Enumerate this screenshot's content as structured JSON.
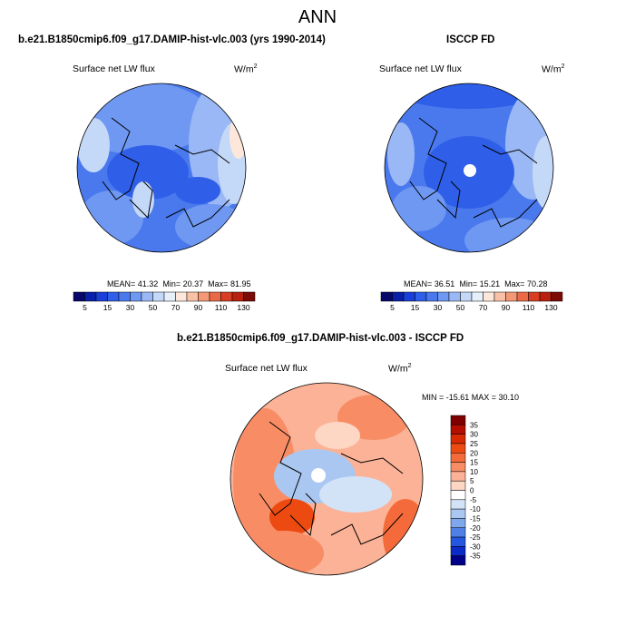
{
  "figure": {
    "title": "ANN"
  },
  "colors": {
    "ocean_default": "#d6e6f7",
    "coastline": "#000000"
  },
  "chart_data": [
    {
      "type": "heatmap",
      "projection": "polar-stereographic-north",
      "title": "b.e21.B1850cmip6.f09_g17.DAMIP-hist-vlc.003 (yrs 1990-2014)",
      "variable": "Surface net LW flux",
      "units": "W/m",
      "units_exp": "2",
      "stats": {
        "mean_label": "MEAN=",
        "mean": "41.32",
        "min_label": "Min=",
        "min": "20.37",
        "max_label": "Max=",
        "max": "81.95"
      },
      "colorbar": {
        "orientation": "horizontal",
        "levels": [
          5,
          10,
          15,
          20,
          30,
          40,
          50,
          60,
          70,
          80,
          90,
          100,
          110,
          120,
          130
        ],
        "tick_labels": [
          "5",
          "15",
          "30",
          "50",
          "70",
          "90",
          "110",
          "130"
        ],
        "colors": [
          "#08086b",
          "#0a1fa8",
          "#1a3fd9",
          "#2f5fe8",
          "#4a79ee",
          "#6f98f2",
          "#9ab8f5",
          "#c4d8f8",
          "#e6f0fb",
          "#fde7da",
          "#f9c2a6",
          "#f49876",
          "#ea6a48",
          "#d83e22",
          "#b8210f",
          "#7c0a05"
        ]
      }
    },
    {
      "type": "heatmap",
      "projection": "polar-stereographic-north",
      "title": "ISCCP FD",
      "variable": "Surface net LW flux",
      "units": "W/m",
      "units_exp": "2",
      "stats": {
        "mean_label": "MEAN=",
        "mean": "36.51",
        "min_label": "Min=",
        "min": "15.21",
        "max_label": "Max=",
        "max": "70.28"
      },
      "colorbar": {
        "orientation": "horizontal",
        "levels": [
          5,
          10,
          15,
          20,
          30,
          40,
          50,
          60,
          70,
          80,
          90,
          100,
          110,
          120,
          130
        ],
        "tick_labels": [
          "5",
          "15",
          "30",
          "50",
          "70",
          "90",
          "110",
          "130"
        ],
        "colors": [
          "#08086b",
          "#0a1fa8",
          "#1a3fd9",
          "#2f5fe8",
          "#4a79ee",
          "#6f98f2",
          "#9ab8f5",
          "#c4d8f8",
          "#e6f0fb",
          "#fde7da",
          "#f9c2a6",
          "#f49876",
          "#ea6a48",
          "#d83e22",
          "#b8210f",
          "#7c0a05"
        ]
      }
    },
    {
      "type": "heatmap",
      "projection": "polar-stereographic-north",
      "title": "b.e21.B1850cmip6.f09_g17.DAMIP-hist-vlc.003 - ISCCP FD",
      "variable": "Surface net LW flux",
      "units": "W/m",
      "units_exp": "2",
      "stats_text": "MIN = -15.61  MAX =  30.10",
      "colorbar": {
        "orientation": "vertical",
        "tick_labels": [
          "35",
          "30",
          "25",
          "20",
          "15",
          "10",
          "5",
          "0",
          "-5",
          "-10",
          "-15",
          "-20",
          "-25",
          "-30",
          "-35"
        ],
        "colors": [
          "#7f0000",
          "#b40e00",
          "#d72a00",
          "#ed4a12",
          "#f46a3a",
          "#f88d65",
          "#fbb296",
          "#fdd6c4",
          "#ffffff",
          "#d2e3f7",
          "#aac7f1",
          "#7ea7ec",
          "#5080e6",
          "#2456e0",
          "#0a2bc8",
          "#000088"
        ]
      }
    }
  ]
}
